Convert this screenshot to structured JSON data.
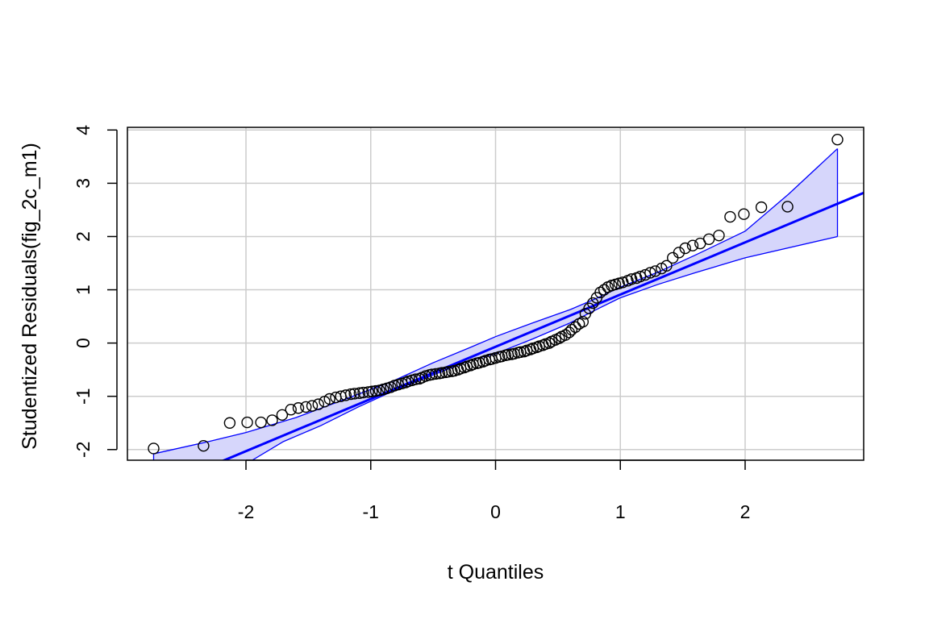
{
  "chart_data": {
    "type": "scatter",
    "title": "",
    "xlabel": "t Quantiles",
    "ylabel": "Studentized Residuals(fig_2c_m1)",
    "xlim": [
      -2.95,
      2.95
    ],
    "ylim": [
      -2.2,
      4.05
    ],
    "x_ticks": [
      {
        "value": -2,
        "label": "-2"
      },
      {
        "value": -1,
        "label": "-1"
      },
      {
        "value": 0,
        "label": "0"
      },
      {
        "value": 1,
        "label": "1"
      },
      {
        "value": 2,
        "label": "2"
      }
    ],
    "y_ticks": [
      {
        "value": -2,
        "label": "-2"
      },
      {
        "value": -1,
        "label": "-1"
      },
      {
        "value": 0,
        "label": "0"
      },
      {
        "value": 1,
        "label": "1"
      },
      {
        "value": 2,
        "label": "2"
      },
      {
        "value": 3,
        "label": "3"
      },
      {
        "value": 4,
        "label": "4"
      }
    ],
    "grid": true,
    "colors": {
      "points": "#000000",
      "reference_line": "#0000ff",
      "band_fill": "#d6d6fb",
      "band_edge": "#0000ff",
      "grid": "#cccccc"
    },
    "reference_line": {
      "slope": 0.98,
      "intercept": -0.07
    },
    "confidence_band": {
      "upper": [
        [
          -2.74,
          -2.08
        ],
        [
          -2.3,
          -1.85
        ],
        [
          -2.0,
          -1.68
        ],
        [
          -1.6,
          -1.4
        ],
        [
          -1.2,
          -1.05
        ],
        [
          -0.8,
          -0.69
        ],
        [
          -0.5,
          -0.37
        ],
        [
          -0.2,
          -0.08
        ],
        [
          0.0,
          0.12
        ],
        [
          0.3,
          0.38
        ],
        [
          0.6,
          0.63
        ],
        [
          0.8,
          0.83
        ],
        [
          1.0,
          1.05
        ],
        [
          1.3,
          1.33
        ],
        [
          1.6,
          1.65
        ],
        [
          2.0,
          2.1
        ],
        [
          2.35,
          2.8
        ],
        [
          2.74,
          3.65
        ]
      ],
      "lower": [
        [
          -2.74,
          -2.25
        ],
        [
          -2.3,
          -2.25
        ],
        [
          -1.95,
          -2.2
        ],
        [
          -1.7,
          -1.85
        ],
        [
          -1.4,
          -1.55
        ],
        [
          -1.1,
          -1.2
        ],
        [
          -0.8,
          -0.88
        ],
        [
          -0.5,
          -0.6
        ],
        [
          -0.2,
          -0.32
        ],
        [
          0.0,
          -0.2
        ],
        [
          0.3,
          0.08
        ],
        [
          0.6,
          0.38
        ],
        [
          0.8,
          0.62
        ],
        [
          1.0,
          0.85
        ],
        [
          1.3,
          1.1
        ],
        [
          1.6,
          1.32
        ],
        [
          2.0,
          1.6
        ],
        [
          2.74,
          2.0
        ]
      ]
    },
    "points": [
      [
        -2.74,
        -1.98
      ],
      [
        -2.34,
        -1.93
      ],
      [
        -2.13,
        -1.5
      ],
      [
        -1.99,
        -1.49
      ],
      [
        -1.88,
        -1.49
      ],
      [
        -1.79,
        -1.45
      ],
      [
        -1.71,
        -1.35
      ],
      [
        -1.64,
        -1.25
      ],
      [
        -1.58,
        -1.22
      ],
      [
        -1.52,
        -1.2
      ],
      [
        -1.47,
        -1.18
      ],
      [
        -1.42,
        -1.15
      ],
      [
        -1.37,
        -1.1
      ],
      [
        -1.33,
        -1.05
      ],
      [
        -1.28,
        -1.02
      ],
      [
        -1.24,
        -1.0
      ],
      [
        -1.2,
        -0.98
      ],
      [
        -1.16,
        -0.96
      ],
      [
        -1.13,
        -0.95
      ],
      [
        -1.09,
        -0.94
      ],
      [
        -1.06,
        -0.93
      ],
      [
        -1.02,
        -0.92
      ],
      [
        -0.99,
        -0.91
      ],
      [
        -0.96,
        -0.9
      ],
      [
        -0.93,
        -0.89
      ],
      [
        -0.9,
        -0.87
      ],
      [
        -0.87,
        -0.85
      ],
      [
        -0.84,
        -0.83
      ],
      [
        -0.81,
        -0.8
      ],
      [
        -0.78,
        -0.78
      ],
      [
        -0.75,
        -0.76
      ],
      [
        -0.72,
        -0.74
      ],
      [
        -0.7,
        -0.72
      ],
      [
        -0.67,
        -0.7
      ],
      [
        -0.64,
        -0.68
      ],
      [
        -0.61,
        -0.67
      ],
      [
        -0.59,
        -0.65
      ],
      [
        -0.56,
        -0.62
      ],
      [
        -0.53,
        -0.6
      ],
      [
        -0.51,
        -0.59
      ],
      [
        -0.48,
        -0.58
      ],
      [
        -0.45,
        -0.57
      ],
      [
        -0.43,
        -0.56
      ],
      [
        -0.4,
        -0.55
      ],
      [
        -0.38,
        -0.54
      ],
      [
        -0.35,
        -0.53
      ],
      [
        -0.33,
        -0.52
      ],
      [
        -0.3,
        -0.5
      ],
      [
        -0.28,
        -0.48
      ],
      [
        -0.25,
        -0.46
      ],
      [
        -0.23,
        -0.44
      ],
      [
        -0.2,
        -0.42
      ],
      [
        -0.18,
        -0.4
      ],
      [
        -0.15,
        -0.38
      ],
      [
        -0.13,
        -0.37
      ],
      [
        -0.1,
        -0.35
      ],
      [
        -0.08,
        -0.33
      ],
      [
        -0.05,
        -0.31
      ],
      [
        -0.03,
        -0.3
      ],
      [
        0.0,
        -0.28
      ],
      [
        0.03,
        -0.26
      ],
      [
        0.05,
        -0.25
      ],
      [
        0.08,
        -0.23
      ],
      [
        0.1,
        -0.22
      ],
      [
        0.13,
        -0.21
      ],
      [
        0.15,
        -0.2
      ],
      [
        0.18,
        -0.18
      ],
      [
        0.2,
        -0.17
      ],
      [
        0.23,
        -0.16
      ],
      [
        0.25,
        -0.14
      ],
      [
        0.28,
        -0.12
      ],
      [
        0.3,
        -0.1
      ],
      [
        0.33,
        -0.08
      ],
      [
        0.35,
        -0.06
      ],
      [
        0.38,
        -0.04
      ],
      [
        0.4,
        -0.02
      ],
      [
        0.43,
        0.0
      ],
      [
        0.45,
        0.03
      ],
      [
        0.48,
        0.06
      ],
      [
        0.51,
        0.09
      ],
      [
        0.53,
        0.12
      ],
      [
        0.56,
        0.15
      ],
      [
        0.59,
        0.2
      ],
      [
        0.61,
        0.25
      ],
      [
        0.64,
        0.3
      ],
      [
        0.67,
        0.36
      ],
      [
        0.7,
        0.4
      ],
      [
        0.72,
        0.55
      ],
      [
        0.75,
        0.65
      ],
      [
        0.78,
        0.75
      ],
      [
        0.81,
        0.85
      ],
      [
        0.84,
        0.95
      ],
      [
        0.87,
        1.0
      ],
      [
        0.9,
        1.05
      ],
      [
        0.93,
        1.08
      ],
      [
        0.96,
        1.1
      ],
      [
        0.99,
        1.12
      ],
      [
        1.02,
        1.14
      ],
      [
        1.06,
        1.17
      ],
      [
        1.09,
        1.2
      ],
      [
        1.13,
        1.22
      ],
      [
        1.16,
        1.25
      ],
      [
        1.2,
        1.28
      ],
      [
        1.24,
        1.32
      ],
      [
        1.28,
        1.35
      ],
      [
        1.33,
        1.4
      ],
      [
        1.37,
        1.45
      ],
      [
        1.42,
        1.6
      ],
      [
        1.47,
        1.7
      ],
      [
        1.52,
        1.78
      ],
      [
        1.58,
        1.83
      ],
      [
        1.64,
        1.87
      ],
      [
        1.71,
        1.95
      ],
      [
        1.79,
        2.02
      ],
      [
        1.88,
        2.37
      ],
      [
        1.99,
        2.42
      ],
      [
        2.13,
        2.55
      ],
      [
        2.34,
        2.56
      ],
      [
        2.74,
        3.82
      ]
    ]
  }
}
